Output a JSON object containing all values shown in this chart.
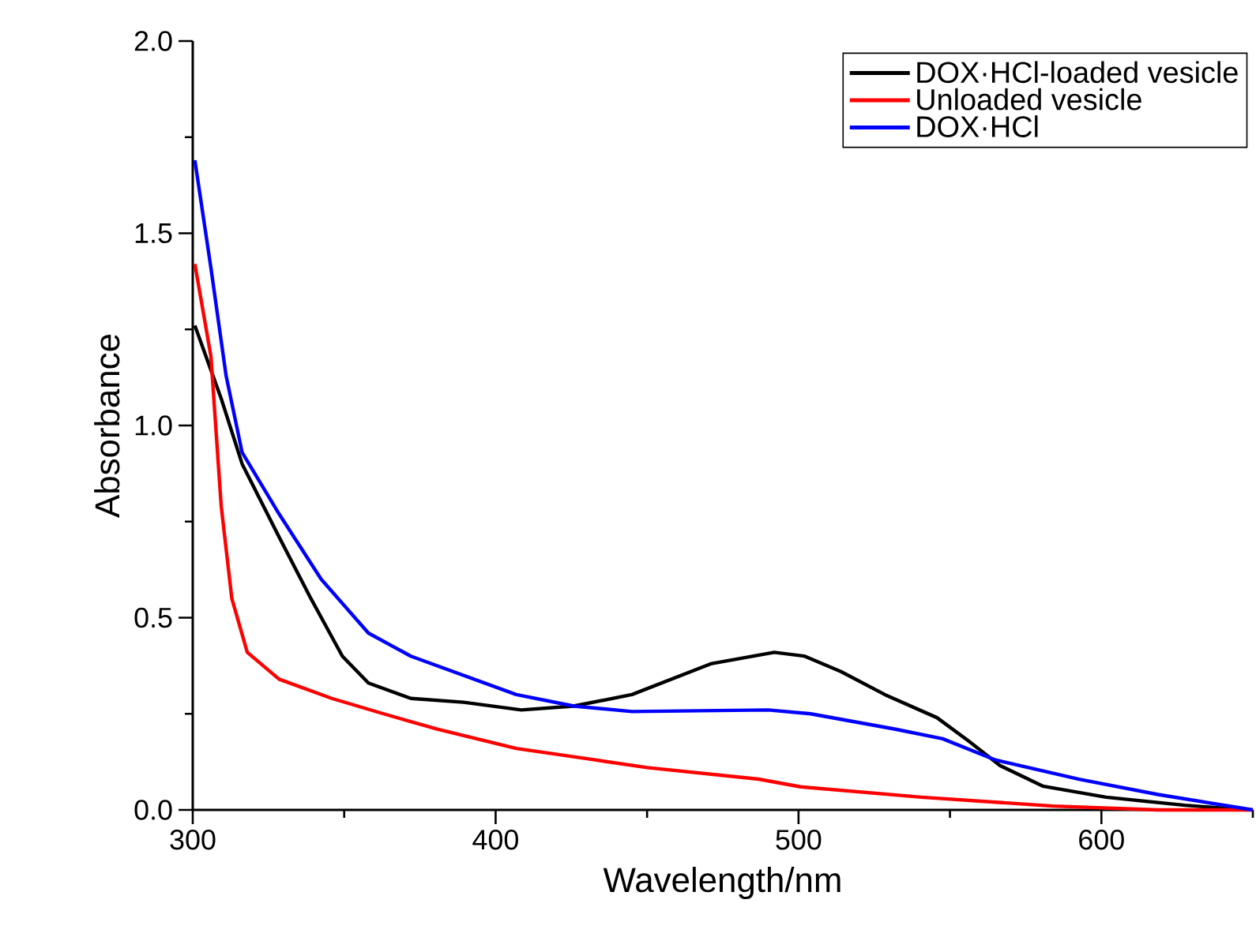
{
  "chart_data": {
    "type": "line",
    "xlabel": "Wavelength/nm",
    "ylabel": "Absorbance",
    "xlim": [
      300,
      650
    ],
    "ylim": [
      0,
      2.0
    ],
    "xticks": [
      300,
      {
        "value": 350,
        "label": null
      },
      400,
      {
        "value": 450,
        "label": null
      },
      500,
      {
        "value": 550,
        "label": null
      },
      600,
      {
        "value": 650,
        "label": null
      }
    ],
    "yticks": [
      {
        "value": 0,
        "label": "0.0"
      },
      {
        "value": 0.25,
        "label": null
      },
      {
        "value": 0.5,
        "label": "0.5"
      },
      {
        "value": 0.75,
        "label": null
      },
      {
        "value": 1.0,
        "label": "1.0"
      },
      {
        "value": 1.25,
        "label": null
      },
      {
        "value": 1.5,
        "label": "1.5"
      },
      {
        "value": 1.75,
        "label": null
      },
      {
        "value": 2.0,
        "label": "2.0"
      }
    ],
    "grid": false,
    "legend": "top right",
    "marker": "none",
    "line_style": "solid",
    "series": [
      {
        "name": "DOX·HCl-loaded vesicle",
        "color": "#000000",
        "x": [
          300.7,
          309.4,
          316.3,
          328.5,
          339,
          349.4,
          358,
          372,
          389.4,
          408.5,
          425.7,
          445,
          471,
          492,
          502,
          514,
          528.5,
          545.7,
          556,
          566.6,
          580.6,
          601.5,
          627.6,
          648
        ],
        "values": [
          1.26,
          1.07,
          0.9,
          0.71,
          0.55,
          0.4,
          0.33,
          0.29,
          0.28,
          0.26,
          0.27,
          0.3,
          0.38,
          0.41,
          0.4,
          0.36,
          0.3,
          0.24,
          0.18,
          0.115,
          0.062,
          0.033,
          0.012,
          0
        ]
      },
      {
        "name": "Unloaded vesicle",
        "color": "#ff0000",
        "x": [
          300.7,
          306,
          309.4,
          312.9,
          318,
          328.5,
          345.9,
          363,
          380.7,
          406.8,
          432.9,
          450,
          486.8,
          500.7,
          540.5,
          584,
          618.7,
          650
        ],
        "values": [
          1.42,
          1.18,
          0.79,
          0.55,
          0.41,
          0.34,
          0.29,
          0.25,
          0.21,
          0.16,
          0.13,
          0.11,
          0.08,
          0.06,
          0.033,
          0.01,
          0,
          0
        ]
      },
      {
        "name": "DOX·HCl",
        "color": "#0000ff",
        "x": [
          300.7,
          306,
          311,
          316.3,
          328.5,
          342.4,
          358,
          372,
          389.4,
          406.8,
          425.9,
          445,
          490,
          504,
          532,
          547.6,
          565,
          592.6,
          618.7,
          650
        ],
        "values": [
          1.69,
          1.41,
          1.13,
          0.93,
          0.77,
          0.6,
          0.46,
          0.4,
          0.35,
          0.3,
          0.27,
          0.256,
          0.26,
          0.25,
          0.21,
          0.185,
          0.13,
          0.08,
          0.04,
          0
        ]
      }
    ]
  }
}
